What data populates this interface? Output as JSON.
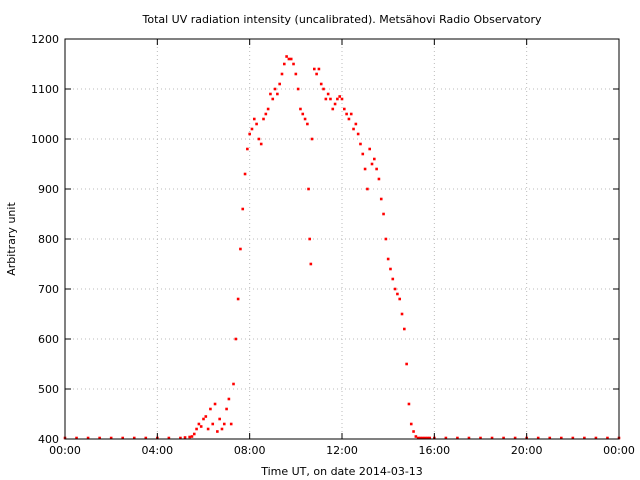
{
  "chart_data": {
    "type": "scatter",
    "title": "Total UV radiation intensity (uncalibrated). Metsähovi Radio Observatory",
    "xlabel": "Time UT, on date 2014-03-13",
    "ylabel": "Arbitrary unit",
    "x_unit": "hours UT",
    "xlim": [
      0,
      24
    ],
    "ylim": [
      400,
      1200
    ],
    "x_ticks": [
      {
        "value": 0,
        "label": "00:00"
      },
      {
        "value": 4,
        "label": "04:00"
      },
      {
        "value": 8,
        "label": "08:00"
      },
      {
        "value": 12,
        "label": "12:00"
      },
      {
        "value": 16,
        "label": "16:00"
      },
      {
        "value": 20,
        "label": "20:00"
      },
      {
        "value": 24,
        "label": "00:00"
      }
    ],
    "y_ticks": [
      {
        "value": 400,
        "label": "400"
      },
      {
        "value": 500,
        "label": "500"
      },
      {
        "value": 600,
        "label": "600"
      },
      {
        "value": 700,
        "label": "700"
      },
      {
        "value": 800,
        "label": "800"
      },
      {
        "value": 900,
        "label": "900"
      },
      {
        "value": 1000,
        "label": "1000"
      },
      {
        "value": 1100,
        "label": "1100"
      },
      {
        "value": 1200,
        "label": "1200"
      }
    ],
    "grid": true,
    "color": "#ff0000",
    "series": [
      {
        "x": [
          0,
          0.5,
          1,
          1.5,
          2,
          2.5,
          3,
          3.5,
          4,
          4.5,
          5,
          5.2,
          5.4,
          5.5,
          5.6,
          5.7,
          5.8,
          5.9,
          6,
          6.1,
          6.2,
          6.3,
          6.4,
          6.5,
          6.6,
          6.7,
          6.8,
          6.9,
          7,
          7.1,
          7.2,
          7.3,
          7.4,
          7.5,
          7.6,
          7.7,
          7.8,
          7.9,
          8,
          8.1,
          8.2,
          8.3,
          8.4,
          8.5,
          8.6,
          8.7,
          8.8,
          8.9,
          9,
          9.1,
          9.2,
          9.3,
          9.4,
          9.5,
          9.6,
          9.7,
          9.8,
          9.9,
          10,
          10.1,
          10.2,
          10.3,
          10.4,
          10.5,
          10.55,
          10.6,
          10.65,
          10.7,
          10.8,
          10.9,
          11,
          11.1,
          11.2,
          11.3,
          11.4,
          11.5,
          11.6,
          11.7,
          11.8,
          11.9,
          12,
          12.1,
          12.2,
          12.3,
          12.4,
          12.5,
          12.6,
          12.7,
          12.8,
          12.9,
          13,
          13.1,
          13.2,
          13.3,
          13.4,
          13.5,
          13.6,
          13.7,
          13.8,
          13.9,
          14,
          14.1,
          14.2,
          14.3,
          14.4,
          14.5,
          14.6,
          14.7,
          14.8,
          14.9,
          15,
          15.1,
          15.2,
          15.3,
          15.4,
          15.5,
          15.6,
          15.7,
          15.8,
          16,
          16.5,
          17,
          17.5,
          18,
          18.5,
          19,
          19.5,
          20,
          20.5,
          21,
          21.5,
          22,
          22.5,
          23,
          23.5,
          24
        ],
        "y": [
          400,
          400,
          400,
          400,
          400,
          400,
          400,
          400,
          400,
          400,
          401,
          403,
          404,
          405,
          410,
          420,
          430,
          425,
          440,
          445,
          420,
          460,
          430,
          470,
          415,
          440,
          420,
          430,
          460,
          480,
          430,
          510,
          600,
          680,
          780,
          860,
          930,
          980,
          1010,
          1020,
          1040,
          1030,
          1000,
          990,
          1040,
          1050,
          1060,
          1090,
          1080,
          1100,
          1090,
          1110,
          1130,
          1150,
          1165,
          1160,
          1160,
          1150,
          1130,
          1100,
          1060,
          1050,
          1040,
          1030,
          900,
          800,
          750,
          1000,
          1140,
          1130,
          1140,
          1110,
          1100,
          1080,
          1090,
          1080,
          1060,
          1070,
          1080,
          1085,
          1080,
          1060,
          1050,
          1040,
          1050,
          1020,
          1030,
          1010,
          990,
          970,
          940,
          900,
          980,
          950,
          960,
          940,
          920,
          880,
          850,
          800,
          760,
          740,
          720,
          700,
          690,
          680,
          650,
          620,
          550,
          470,
          430,
          415,
          405,
          402,
          400,
          401,
          400,
          400,
          400,
          401,
          400,
          400,
          400,
          400,
          400,
          400,
          400,
          400,
          400,
          400,
          400,
          400,
          400,
          400,
          400,
          400
        ]
      }
    ]
  }
}
